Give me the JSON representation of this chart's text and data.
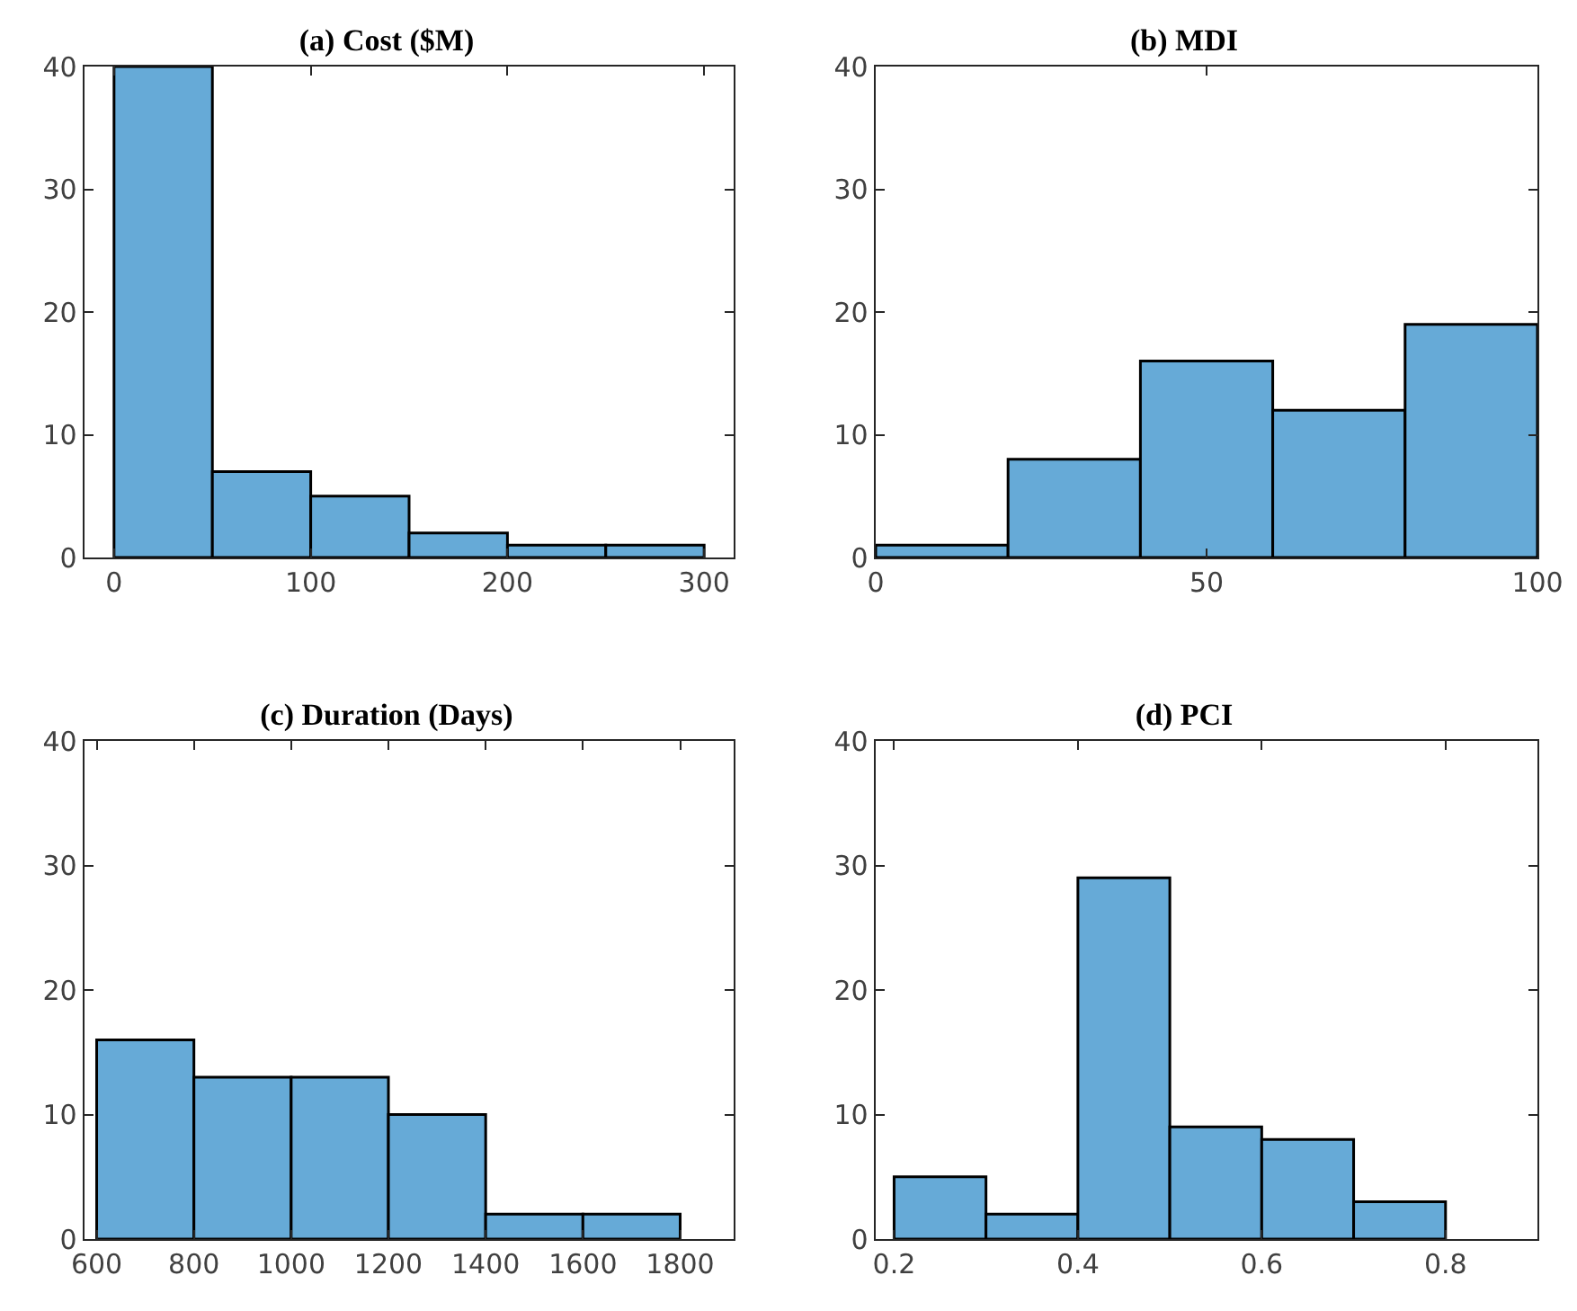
{
  "chart_data": [
    {
      "type": "histogram",
      "title": "(a) Cost ($M)",
      "bins": [
        0,
        50,
        100,
        150,
        200,
        250,
        300
      ],
      "values": [
        40,
        7,
        5,
        2,
        1,
        1
      ],
      "color": "#66aad7",
      "xlim": [
        -15,
        315
      ],
      "xticks": [
        0,
        100,
        200,
        300
      ],
      "ylim": [
        0,
        40
      ],
      "yticks": [
        0,
        10,
        20,
        30,
        40
      ]
    },
    {
      "type": "histogram",
      "title": "(b) MDI",
      "bins": [
        0,
        20,
        40,
        60,
        80,
        100
      ],
      "values": [
        1,
        8,
        16,
        12,
        19
      ],
      "color": "#66aad7",
      "xlim": [
        0,
        100
      ],
      "xticks": [
        0,
        50,
        100
      ],
      "ylim": [
        0,
        40
      ],
      "yticks": [
        0,
        10,
        20,
        30,
        40
      ]
    },
    {
      "type": "histogram",
      "title": "(c) Duration (Days)",
      "bins": [
        600,
        800,
        1000,
        1200,
        1400,
        1600,
        1800
      ],
      "values": [
        16,
        13,
        13,
        10,
        2,
        2
      ],
      "color": "#66aad7",
      "xlim": [
        575,
        1910
      ],
      "xticks": [
        600,
        800,
        1000,
        1200,
        1400,
        1600,
        1800
      ],
      "ylim": [
        0,
        40
      ],
      "yticks": [
        0,
        10,
        20,
        30,
        40
      ]
    },
    {
      "type": "histogram",
      "title": "(d) PCI",
      "bins": [
        0.2,
        0.3,
        0.4,
        0.5,
        0.6,
        0.7,
        0.8
      ],
      "values": [
        5,
        2,
        29,
        9,
        8,
        3
      ],
      "color": "#66aad7",
      "xlim": [
        0.18,
        0.9
      ],
      "xticks": [
        0.2,
        0.4,
        0.6,
        0.8
      ],
      "ylim": [
        0,
        40
      ],
      "yticks": [
        0,
        10,
        20,
        30,
        40
      ]
    }
  ]
}
